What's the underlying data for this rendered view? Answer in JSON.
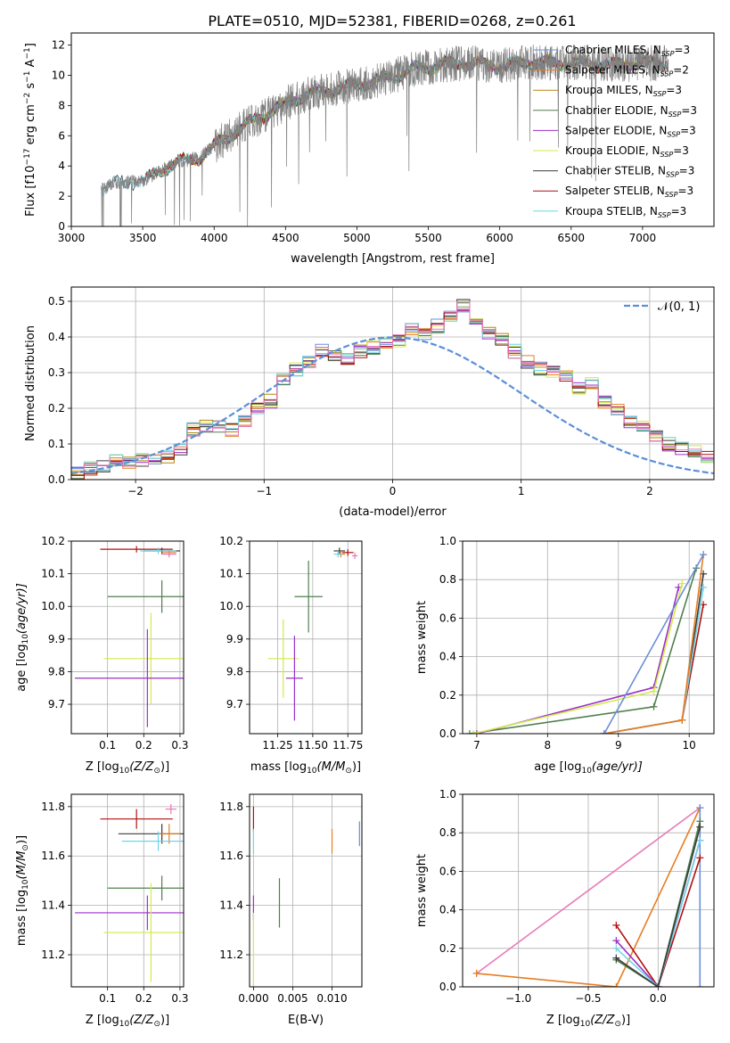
{
  "figure_title": "PLATE=0510, MJD=52381, FIBERID=0268, z=0.261",
  "colors": {
    "chabrier_miles": "#6a8fd8",
    "salpeter_miles": "#e67e22",
    "kroupa_miles": "#b8860b",
    "chabrier_elodie": "#4f7f4f",
    "salpeter_elodie": "#9b30c8",
    "kroupa_elodie": "#d4ea4a",
    "chabrier_stelib": "#3b3b3b",
    "salpeter_stelib": "#b01010",
    "kroupa_stelib": "#6ed6e6",
    "data": "#808080",
    "normal": "#5b8fd8",
    "pink": "#e87ab8"
  },
  "chart_data": [
    {
      "id": "spectrum",
      "type": "line",
      "xlabel": "wavelength [Angstrom, rest frame]",
      "ylabel": "Flux [f",
      "ylabel_rest": "10",
      "ylabel_exp1": "−17",
      "ylabel_mid": " erg cm",
      "ylabel_exp2": "−2",
      "ylabel_mid2": " s",
      "ylabel_exp3": "−1",
      "ylabel_end": " A",
      "ylabel_exp4": "−1",
      "ylabel_close": "]",
      "xlim": [
        3000,
        7500
      ],
      "ylim": [
        0,
        12.8
      ],
      "xticks": [
        "3000",
        "3500",
        "4000",
        "4500",
        "5000",
        "5500",
        "6000",
        "6500",
        "7000"
      ],
      "yticks": [
        "0",
        "2",
        "4",
        "6",
        "8",
        "10",
        "12"
      ],
      "data_range": [
        3210,
        7180
      ],
      "legend": [
        {
          "name": "Chabrier MILES, N",
          "sub": "SSP",
          "suffix": "=3",
          "color_key": "chabrier_miles"
        },
        {
          "name": "Salpeter MILES, N",
          "sub": "SSP",
          "suffix": "=2",
          "color_key": "salpeter_miles"
        },
        {
          "name": "Kroupa MILES, N",
          "sub": "SSP",
          "suffix": "=3",
          "color_key": "kroupa_miles"
        },
        {
          "name": "Chabrier ELODIE, N",
          "sub": "SSP",
          "suffix": "=3",
          "color_key": "chabrier_elodie"
        },
        {
          "name": "Salpeter ELODIE, N",
          "sub": "SSP",
          "suffix": "=3",
          "color_key": "salpeter_elodie"
        },
        {
          "name": "Kroupa ELODIE, N",
          "sub": "SSP",
          "suffix": "=3",
          "color_key": "kroupa_elodie"
        },
        {
          "name": "Chabrier STELIB, N",
          "sub": "SSP",
          "suffix": "=3",
          "color_key": "chabrier_stelib"
        },
        {
          "name": "Salpeter STELIB, N",
          "sub": "SSP",
          "suffix": "=3",
          "color_key": "salpeter_stelib"
        },
        {
          "name": "Kroupa STELIB, N",
          "sub": "SSP",
          "suffix": "=3",
          "color_key": "kroupa_stelib"
        }
      ],
      "continuum_knots": [
        [
          3210,
          2.4
        ],
        [
          3300,
          2.9
        ],
        [
          3500,
          3.0
        ],
        [
          3700,
          4.1
        ],
        [
          3900,
          4.6
        ],
        [
          4000,
          5.3
        ],
        [
          4200,
          6.6
        ],
        [
          4400,
          7.6
        ],
        [
          4600,
          8.6
        ],
        [
          4800,
          9.0
        ],
        [
          5000,
          9.4
        ],
        [
          5200,
          9.8
        ],
        [
          5400,
          10.4
        ],
        [
          5600,
          10.7
        ],
        [
          5800,
          10.8
        ],
        [
          6000,
          10.6
        ],
        [
          6200,
          10.9
        ],
        [
          6400,
          10.8
        ],
        [
          6600,
          10.8
        ],
        [
          6800,
          10.7
        ],
        [
          7000,
          10.8
        ],
        [
          7180,
          10.8
        ]
      ]
    },
    {
      "id": "residuals",
      "type": "histogram",
      "xlabel": "(data-model)/error",
      "ylabel": "Normed distribution",
      "xlim": [
        -2.5,
        2.5
      ],
      "ylim": [
        0,
        0.54
      ],
      "xticks": [
        "−2",
        "−1",
        "0",
        "1",
        "2"
      ],
      "yticks": [
        "0.0",
        "0.1",
        "0.2",
        "0.3",
        "0.4",
        "0.5"
      ],
      "legend_label": "𝒩(0, 1)",
      "bin_width": 0.1,
      "base_heights": [
        0.02,
        0.03,
        0.04,
        0.05,
        0.05,
        0.055,
        0.06,
        0.065,
        0.08,
        0.14,
        0.15,
        0.15,
        0.14,
        0.16,
        0.2,
        0.22,
        0.28,
        0.31,
        0.33,
        0.36,
        0.35,
        0.34,
        0.36,
        0.37,
        0.38,
        0.39,
        0.42,
        0.41,
        0.43,
        0.46,
        0.49,
        0.44,
        0.41,
        0.39,
        0.36,
        0.33,
        0.31,
        0.3,
        0.29,
        0.26,
        0.27,
        0.22,
        0.2,
        0.16,
        0.15,
        0.12,
        0.1,
        0.09,
        0.08,
        0.06
      ]
    },
    {
      "id": "age_vs_Z",
      "type": "scatter",
      "xlabel": "Z [log",
      "xlabel_sub": "10",
      "xlabel_rest": "(Z/Z",
      "xlabel_sun": "⊙",
      "xlabel_close": ")]",
      "ylabel": "age  [log",
      "ylabel_sub": "10",
      "ylabel_rest": "(age/yr)]",
      "xlim": [
        0.0,
        0.31
      ],
      "ylim": [
        9.61,
        10.2
      ],
      "xticks": [
        "0.1",
        "0.2",
        "0.3"
      ],
      "yticks": [
        "9.7",
        "9.8",
        "9.9",
        "10.0",
        "10.1",
        "10.2"
      ],
      "points": [
        {
          "color_key": "salpeter_stelib",
          "x": 0.18,
          "y": 10.175,
          "xerr": 0.1,
          "yerr": 0.01
        },
        {
          "color_key": "chabrier_stelib",
          "x": 0.25,
          "y": 10.17,
          "xerr": 0.05,
          "yerr": 0.01
        },
        {
          "color_key": "salpeter_miles",
          "x": 0.27,
          "y": 10.165,
          "xerr": 0.02,
          "yerr": 0.01
        },
        {
          "color_key": "kroupa_stelib",
          "x": 0.24,
          "y": 10.17,
          "xerr": 0.05,
          "yerr": 0.01
        },
        {
          "color_key": "pink",
          "x": 0.27,
          "y": 10.16,
          "xerr": 0.02,
          "yerr": 0.01
        },
        {
          "color_key": "chabrier_elodie",
          "x": 0.25,
          "y": 10.03,
          "xerr": 0.15,
          "yerr": 0.05
        },
        {
          "color_key": "kroupa_elodie",
          "x": 0.22,
          "y": 9.84,
          "xerr": 0.13,
          "yerr": 0.14
        },
        {
          "color_key": "salpeter_elodie",
          "x": 0.21,
          "y": 9.78,
          "xerr": 0.2,
          "yerr": 0.15
        }
      ]
    },
    {
      "id": "age_vs_mass",
      "type": "scatter",
      "xlabel": "mass [log",
      "xlabel_sub": "10",
      "xlabel_rest": "(M/M",
      "xlabel_sun": "⊙",
      "xlabel_close": ")]",
      "xlim": [
        11.05,
        11.85
      ],
      "ylim": [
        9.61,
        10.2
      ],
      "xticks": [
        "11.25",
        "11.50",
        "11.75"
      ],
      "yticks": [
        "9.7",
        "9.8",
        "9.9",
        "10.0",
        "10.1",
        "10.2"
      ],
      "points": [
        {
          "color_key": "chabrier_stelib",
          "x": 11.69,
          "y": 10.17,
          "xerr": 0.04,
          "yerr": 0.01
        },
        {
          "color_key": "salpeter_stelib",
          "x": 11.75,
          "y": 10.165,
          "xerr": 0.04,
          "yerr": 0.01
        },
        {
          "color_key": "salpeter_miles",
          "x": 11.7,
          "y": 10.16,
          "xerr": 0.03,
          "yerr": 0.01
        },
        {
          "color_key": "kroupa_stelib",
          "x": 11.68,
          "y": 10.16,
          "xerr": 0.03,
          "yerr": 0.01
        },
        {
          "color_key": "pink",
          "x": 11.8,
          "y": 10.155,
          "xerr": 0.02,
          "yerr": 0.01
        },
        {
          "color_key": "chabrier_elodie",
          "x": 11.47,
          "y": 10.03,
          "xerr": 0.1,
          "yerr": 0.11
        },
        {
          "color_key": "kroupa_elodie",
          "x": 11.29,
          "y": 9.84,
          "xerr": 0.11,
          "yerr": 0.12
        },
        {
          "color_key": "salpeter_elodie",
          "x": 11.37,
          "y": 9.78,
          "xerr": 0.06,
          "yerr": 0.13
        }
      ]
    },
    {
      "id": "weight_vs_age",
      "type": "line",
      "xlabel": "age  [log",
      "xlabel_sub": "10",
      "xlabel_rest": "(age/yr)]",
      "ylabel": "mass weight",
      "xlim": [
        6.8,
        10.35
      ],
      "ylim": [
        0.0,
        1.0
      ],
      "xticks": [
        "7",
        "8",
        "9",
        "10"
      ],
      "yticks": [
        "0.0",
        "0.2",
        "0.4",
        "0.6",
        "0.8",
        "1.0"
      ],
      "series": [
        {
          "color_key": "chabrier_elodie",
          "x": [
            6.9,
            9.5,
            10.1
          ],
          "y": [
            0.0,
            0.14,
            0.86
          ]
        },
        {
          "color_key": "salpeter_elodie",
          "x": [
            7.0,
            9.5,
            9.85
          ],
          "y": [
            0.0,
            0.24,
            0.76
          ]
        },
        {
          "color_key": "kroupa_elodie",
          "x": [
            6.95,
            9.5,
            9.9
          ],
          "y": [
            0.0,
            0.22,
            0.78
          ]
        },
        {
          "color_key": "chabrier_stelib",
          "x": [
            8.8,
            9.9,
            10.2
          ],
          "y": [
            0.0,
            0.07,
            0.83
          ]
        },
        {
          "color_key": "salpeter_stelib",
          "x": [
            8.8,
            9.9,
            10.2
          ],
          "y": [
            0.0,
            0.07,
            0.67
          ]
        },
        {
          "color_key": "kroupa_stelib",
          "x": [
            8.8,
            9.9,
            10.2
          ],
          "y": [
            0.0,
            0.07,
            0.76
          ]
        },
        {
          "color_key": "salpeter_miles",
          "x": [
            8.8,
            9.9,
            10.2
          ],
          "y": [
            0.0,
            0.07,
            0.93
          ]
        },
        {
          "color_key": "chabrier_miles",
          "x": [
            8.8,
            10.2
          ],
          "y": [
            0.0,
            0.93
          ]
        }
      ]
    },
    {
      "id": "mass_vs_Z",
      "type": "scatter",
      "xlabel": "Z [log",
      "xlabel_sub": "10",
      "xlabel_rest": "(Z/Z",
      "xlabel_sun": "⊙",
      "xlabel_close": ")]",
      "ylabel": "mass [log",
      "ylabel_sub": "10",
      "ylabel_rest": "(M/M",
      "ylabel_sun": "⊙",
      "ylabel_close": ")]",
      "xlim": [
        0.0,
        0.31
      ],
      "ylim": [
        11.07,
        11.85
      ],
      "xticks": [
        "0.1",
        "0.2",
        "0.3"
      ],
      "yticks": [
        "11.2",
        "11.4",
        "11.6",
        "11.8"
      ],
      "points": [
        {
          "color_key": "pink",
          "x": 0.275,
          "y": 11.79,
          "xerr": 0.015,
          "yerr": 0.02
        },
        {
          "color_key": "salpeter_stelib",
          "x": 0.18,
          "y": 11.75,
          "xerr": 0.1,
          "yerr": 0.04
        },
        {
          "color_key": "chabrier_stelib",
          "x": 0.25,
          "y": 11.69,
          "xerr": 0.12,
          "yerr": 0.04
        },
        {
          "color_key": "salpeter_miles",
          "x": 0.27,
          "y": 11.69,
          "xerr": 0.03,
          "yerr": 0.04
        },
        {
          "color_key": "kroupa_stelib",
          "x": 0.24,
          "y": 11.66,
          "xerr": 0.1,
          "yerr": 0.04
        },
        {
          "color_key": "chabrier_elodie",
          "x": 0.25,
          "y": 11.47,
          "xerr": 0.15,
          "yerr": 0.05
        },
        {
          "color_key": "salpeter_elodie",
          "x": 0.21,
          "y": 11.37,
          "xerr": 0.2,
          "yerr": 0.07
        },
        {
          "color_key": "kroupa_elodie",
          "x": 0.22,
          "y": 11.29,
          "xerr": 0.13,
          "yerr": 0.2
        }
      ]
    },
    {
      "id": "mass_vs_ebv",
      "type": "scatter",
      "xlabel": "E(B-V)",
      "xlim": [
        -0.0005,
        0.0138
      ],
      "ylim": [
        11.07,
        11.85
      ],
      "xticks": [
        "0.000",
        "0.005",
        "0.010"
      ],
      "yticks": [
        "11.2",
        "11.4",
        "11.6",
        "11.8"
      ],
      "points": [
        {
          "color_key": "salpeter_stelib",
          "x": 0.0,
          "y": 11.75,
          "xerr": 0,
          "yerr": 0.05
        },
        {
          "color_key": "kroupa_stelib",
          "x": 0.0,
          "y": 11.66,
          "xerr": 0,
          "yerr": 0.05
        },
        {
          "color_key": "salpeter_elodie",
          "x": 0.0,
          "y": 11.39,
          "xerr": 0,
          "yerr": 0.05
        },
        {
          "color_key": "kroupa_elodie",
          "x": 0.0,
          "y": 11.22,
          "xerr": 0,
          "yerr": 0.15
        },
        {
          "color_key": "chabrier_elodie",
          "x": 0.0033,
          "y": 11.41,
          "xerr": 0,
          "yerr": 0.1
        },
        {
          "color_key": "salpeter_miles",
          "x": 0.01,
          "y": 11.66,
          "xerr": 0,
          "yerr": 0.05
        },
        {
          "color_key": "chabrier_miles",
          "x": 0.0135,
          "y": 11.69,
          "xerr": 0,
          "yerr": 0.05
        }
      ]
    },
    {
      "id": "weight_vs_Z",
      "type": "line",
      "xlabel": "Z [log",
      "xlabel_sub": "10",
      "xlabel_rest": "(Z/Z",
      "xlabel_sun": "⊙",
      "xlabel_close": ")]",
      "ylabel": "mass weight",
      "xlim": [
        -1.4,
        0.4
      ],
      "ylim": [
        0.0,
        1.0
      ],
      "xticks": [
        "−1.0",
        "−0.5",
        "0.0"
      ],
      "yticks": [
        "0.0",
        "0.2",
        "0.4",
        "0.6",
        "0.8",
        "1.0"
      ],
      "series": [
        {
          "color_key": "pink",
          "x": [
            -1.3,
            0.3
          ],
          "y": [
            0.07,
            0.93
          ]
        },
        {
          "color_key": "salpeter_miles",
          "x": [
            -1.3,
            -0.3,
            0.3
          ],
          "y": [
            0.07,
            0.0,
            0.93
          ]
        },
        {
          "color_key": "chabrier_miles",
          "x": [
            0.3,
            0.3
          ],
          "y": [
            0.0,
            0.93
          ]
        },
        {
          "color_key": "chabrier_elodie",
          "x": [
            -0.3,
            0.0,
            0.3
          ],
          "y": [
            0.14,
            0.0,
            0.86
          ]
        },
        {
          "color_key": "salpeter_stelib",
          "x": [
            -0.3,
            0.0,
            0.3
          ],
          "y": [
            0.32,
            0.0,
            0.67
          ]
        },
        {
          "color_key": "salpeter_elodie",
          "x": [
            -0.3,
            0.0,
            0.3
          ],
          "y": [
            0.24,
            0.0,
            0.76
          ]
        },
        {
          "color_key": "kroupa_stelib",
          "x": [
            -0.3,
            0.0,
            0.3
          ],
          "y": [
            0.2,
            0.0,
            0.76
          ]
        },
        {
          "color_key": "chabrier_stelib",
          "x": [
            -0.3,
            0.0,
            0.3
          ],
          "y": [
            0.15,
            0.0,
            0.83
          ]
        }
      ]
    }
  ]
}
